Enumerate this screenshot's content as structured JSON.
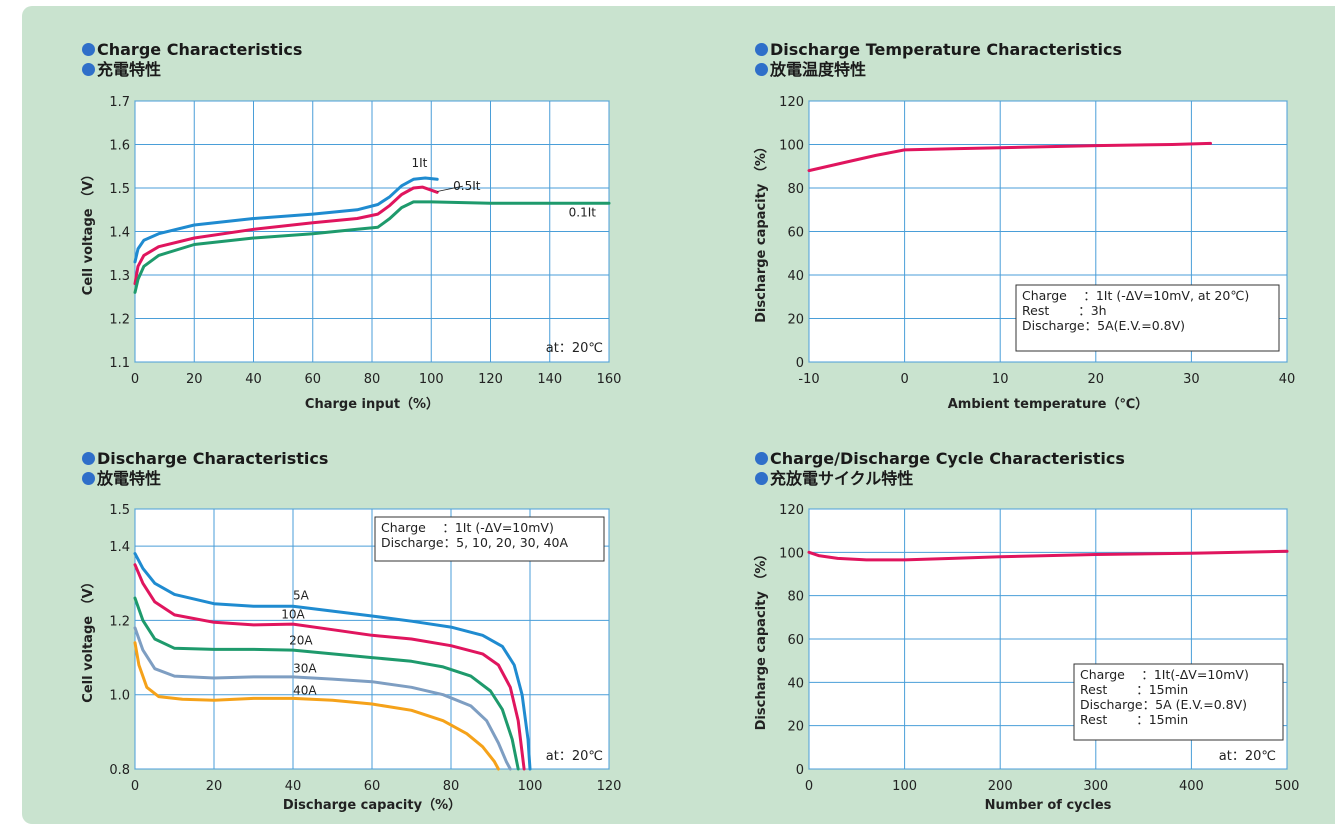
{
  "chart_data": [
    {
      "id": "charge",
      "type": "line",
      "title_en": "Charge Characteristics",
      "title_ja": "充電特性",
      "xlabel": "Charge input（%）",
      "ylabel": "Cell voltage （V）",
      "xlim": [
        0,
        160
      ],
      "ylim": [
        1.1,
        1.7
      ],
      "xticks": [
        "0",
        "20",
        "40",
        "60",
        "80",
        "100",
        "120",
        "140",
        "160"
      ],
      "yticks": [
        "1.1",
        "1.2",
        "1.3",
        "1.4",
        "1.5",
        "1.6",
        "1.7"
      ],
      "grid": true,
      "note": "at：20℃",
      "series": [
        {
          "name": "1It",
          "color": "#1f8bd0",
          "points": [
            [
              0,
              1.33
            ],
            [
              1,
              1.36
            ],
            [
              3,
              1.38
            ],
            [
              8,
              1.395
            ],
            [
              20,
              1.415
            ],
            [
              40,
              1.43
            ],
            [
              60,
              1.44
            ],
            [
              75,
              1.45
            ],
            [
              82,
              1.462
            ],
            [
              86,
              1.48
            ],
            [
              90,
              1.505
            ],
            [
              94,
              1.52
            ],
            [
              98,
              1.523
            ],
            [
              102,
              1.52
            ]
          ]
        },
        {
          "name": "0.5It",
          "color": "#e0155e",
          "points": [
            [
              0,
              1.28
            ],
            [
              1,
              1.32
            ],
            [
              3,
              1.345
            ],
            [
              8,
              1.365
            ],
            [
              20,
              1.385
            ],
            [
              40,
              1.405
            ],
            [
              60,
              1.42
            ],
            [
              75,
              1.43
            ],
            [
              82,
              1.44
            ],
            [
              86,
              1.46
            ],
            [
              90,
              1.485
            ],
            [
              94,
              1.5
            ],
            [
              97,
              1.502
            ],
            [
              100,
              1.495
            ],
            [
              102,
              1.49
            ]
          ]
        },
        {
          "name": "0.1It",
          "color": "#1e9a6c",
          "points": [
            [
              0,
              1.26
            ],
            [
              1,
              1.29
            ],
            [
              3,
              1.32
            ],
            [
              8,
              1.345
            ],
            [
              20,
              1.37
            ],
            [
              40,
              1.385
            ],
            [
              60,
              1.395
            ],
            [
              75,
              1.405
            ],
            [
              82,
              1.41
            ],
            [
              86,
              1.43
            ],
            [
              90,
              1.455
            ],
            [
              94,
              1.468
            ],
            [
              100,
              1.468
            ],
            [
              120,
              1.465
            ],
            [
              140,
              1.465
            ],
            [
              160,
              1.465
            ]
          ]
        }
      ]
    },
    {
      "id": "temp",
      "type": "line",
      "title_en": "Discharge Temperature Characteristics",
      "title_ja": "放電温度特性",
      "xlabel": "Ambient temperature（℃）",
      "ylabel": "Discharge capacity （%）",
      "xlim": [
        -10,
        40
      ],
      "ylim": [
        0,
        120
      ],
      "xticks": [
        "-10",
        "0",
        "10",
        "20",
        "30",
        "40"
      ],
      "yticks": [
        "0",
        "20",
        "40",
        "60",
        "80",
        "100",
        "120"
      ],
      "grid": true,
      "legend_lines": [
        "Charge　 ：1It (-ΔV=10mV, at 20℃)",
        "Rest　　 ：3h",
        "Discharge：5A(E.V.=0.8V)"
      ],
      "series": [
        {
          "color": "#e0155e",
          "points": [
            [
              -10,
              88
            ],
            [
              -6,
              92
            ],
            [
              -3,
              95
            ],
            [
              0,
              97.5
            ],
            [
              5,
              98
            ],
            [
              10,
              98.5
            ],
            [
              20,
              99.5
            ],
            [
              28,
              100
            ],
            [
              32,
              100.5
            ]
          ]
        }
      ]
    },
    {
      "id": "discharge",
      "type": "line",
      "title_en": "Discharge Characteristics",
      "title_ja": "放電特性",
      "xlabel": "Discharge capacity（%）",
      "ylabel": "Cell voltage （V）",
      "xlim": [
        0,
        120
      ],
      "ylim": [
        0.8,
        1.5
      ],
      "xticks": [
        "0",
        "20",
        "40",
        "60",
        "80",
        "100",
        "120"
      ],
      "yticks": [
        "0.8",
        "1.0",
        "1.2",
        "1.4",
        "1.5"
      ],
      "grid": true,
      "note": "at：20℃",
      "legend_lines": [
        "Charge　 ：1It (-ΔV=10mV)",
        "Discharge：5, 10, 20, 30, 40A"
      ],
      "series": [
        {
          "name": "5A",
          "color": "#1f8bd0",
          "points": [
            [
              0,
              1.38
            ],
            [
              2,
              1.34
            ],
            [
              5,
              1.3
            ],
            [
              10,
              1.27
            ],
            [
              20,
              1.245
            ],
            [
              30,
              1.238
            ],
            [
              40,
              1.238
            ],
            [
              50,
              1.225
            ],
            [
              60,
              1.212
            ],
            [
              70,
              1.198
            ],
            [
              80,
              1.182
            ],
            [
              88,
              1.16
            ],
            [
              93,
              1.13
            ],
            [
              96,
              1.08
            ],
            [
              98,
              1.0
            ],
            [
              99.5,
              0.88
            ],
            [
              100,
              0.8
            ]
          ]
        },
        {
          "name": "10A",
          "color": "#e0155e",
          "points": [
            [
              0,
              1.35
            ],
            [
              2,
              1.3
            ],
            [
              5,
              1.25
            ],
            [
              10,
              1.215
            ],
            [
              20,
              1.195
            ],
            [
              30,
              1.188
            ],
            [
              40,
              1.19
            ],
            [
              50,
              1.175
            ],
            [
              60,
              1.16
            ],
            [
              70,
              1.15
            ],
            [
              80,
              1.132
            ],
            [
              88,
              1.11
            ],
            [
              92,
              1.08
            ],
            [
              95,
              1.02
            ],
            [
              97,
              0.93
            ],
            [
              98.5,
              0.8
            ]
          ]
        },
        {
          "name": "20A",
          "color": "#1e9a6c",
          "points": [
            [
              0,
              1.26
            ],
            [
              2,
              1.2
            ],
            [
              5,
              1.15
            ],
            [
              10,
              1.125
            ],
            [
              20,
              1.122
            ],
            [
              30,
              1.122
            ],
            [
              40,
              1.12
            ],
            [
              50,
              1.11
            ],
            [
              60,
              1.1
            ],
            [
              70,
              1.09
            ],
            [
              78,
              1.075
            ],
            [
              85,
              1.05
            ],
            [
              90,
              1.01
            ],
            [
              93,
              0.96
            ],
            [
              95.5,
              0.88
            ],
            [
              97,
              0.8
            ]
          ]
        },
        {
          "name": "30A",
          "color": "#7e9ec2",
          "points": [
            [
              0,
              1.18
            ],
            [
              2,
              1.12
            ],
            [
              5,
              1.07
            ],
            [
              10,
              1.05
            ],
            [
              20,
              1.045
            ],
            [
              30,
              1.048
            ],
            [
              40,
              1.048
            ],
            [
              50,
              1.042
            ],
            [
              60,
              1.035
            ],
            [
              70,
              1.02
            ],
            [
              78,
              1.0
            ],
            [
              85,
              0.97
            ],
            [
              89,
              0.93
            ],
            [
              92,
              0.87
            ],
            [
              94,
              0.82
            ],
            [
              95,
              0.8
            ]
          ]
        },
        {
          "name": "40A",
          "color": "#f5a21a",
          "points": [
            [
              0,
              1.14
            ],
            [
              1,
              1.08
            ],
            [
              3,
              1.02
            ],
            [
              6,
              0.995
            ],
            [
              12,
              0.988
            ],
            [
              20,
              0.985
            ],
            [
              30,
              0.99
            ],
            [
              40,
              0.99
            ],
            [
              50,
              0.985
            ],
            [
              60,
              0.975
            ],
            [
              70,
              0.958
            ],
            [
              78,
              0.93
            ],
            [
              84,
              0.895
            ],
            [
              88,
              0.86
            ],
            [
              91,
              0.82
            ],
            [
              92,
              0.8
            ]
          ]
        }
      ]
    },
    {
      "id": "cycle",
      "type": "line",
      "title_en": "Charge/Discharge Cycle Characteristics",
      "title_ja": "充放電サイクル特性",
      "xlabel": "Number of cycles",
      "ylabel": "Discharge capacity （%）",
      "xlim": [
        0,
        500
      ],
      "ylim": [
        0,
        120
      ],
      "xticks": [
        "0",
        "100",
        "200",
        "300",
        "400",
        "500"
      ],
      "yticks": [
        "0",
        "20",
        "40",
        "60",
        "80",
        "100",
        "120"
      ],
      "grid": true,
      "note": "at：20℃",
      "legend_lines": [
        "Charge　 ：1It(-ΔV=10mV)",
        "Rest　　 ：15min",
        "Discharge：5A (E.V.=0.8V)",
        "Rest　　 ：15min"
      ],
      "series": [
        {
          "color": "#e0155e",
          "points": [
            [
              0,
              100
            ],
            [
              10,
              98.5
            ],
            [
              30,
              97.2
            ],
            [
              60,
              96.5
            ],
            [
              100,
              96.5
            ],
            [
              150,
              97.2
            ],
            [
              200,
              98
            ],
            [
              300,
              99
            ],
            [
              400,
              99.6
            ],
            [
              500,
              100.5
            ]
          ]
        }
      ]
    }
  ]
}
